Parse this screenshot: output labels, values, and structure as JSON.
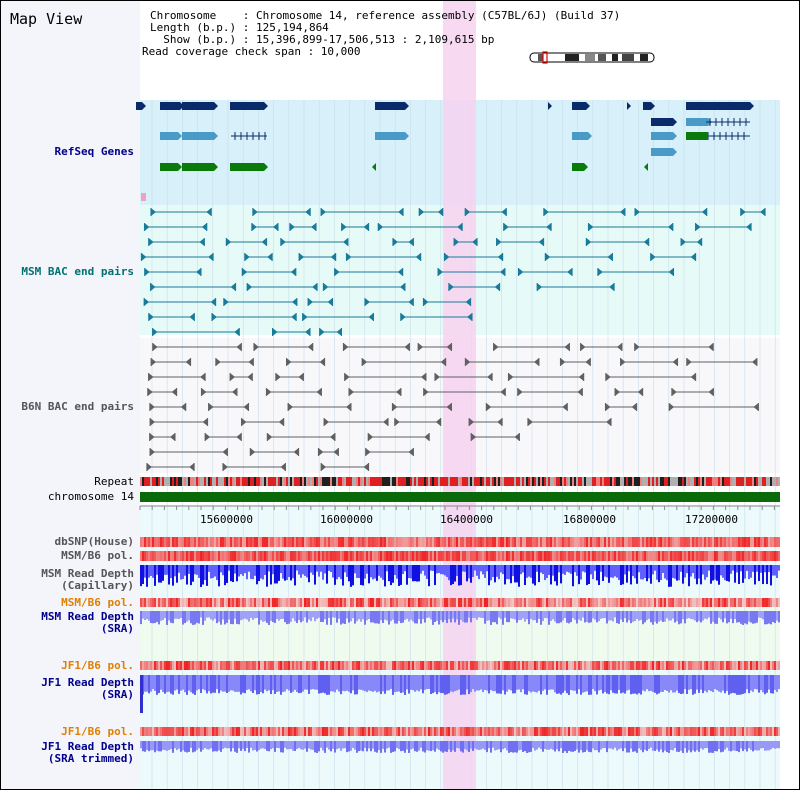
{
  "header": {
    "title": "Map View",
    "chromosome_line": "Chromosome    : Chromosome 14, reference assembly (C57BL/6J) (Build 37)",
    "length_line": "Length (b.p.) : 125,194,864",
    "show_line": "  Show (b.p.) : 15,396,899-17,506,513 : 2,109,615 bp",
    "coverage_line": "Read coverage check span : 10,000"
  },
  "tracks": {
    "refseq": "RefSeq Genes",
    "msm_bac": "MSM BAC end pairs",
    "b6n_bac": "B6N BAC end pairs",
    "repeat": "Repeat",
    "chromosome": "chromosome 14",
    "dbsnp": "dbSNP(House)",
    "msm_b6_pol_1": "MSM/B6 pol.",
    "msm_depth_cap_1": "MSM Read Depth",
    "msm_depth_cap_2": "(Capillary)",
    "msm_b6_pol_2": "MSM/B6 pol.",
    "msm_depth_sra_1": "MSM Read Depth",
    "msm_depth_sra_2": "(SRA)",
    "jf1_b6_pol_1": "JF1/B6 pol.",
    "jf1_depth_sra_1": "JF1 Read Depth",
    "jf1_depth_sra_2": "(SRA)",
    "jf1_b6_pol_2": "JF1/B6 pol.",
    "jf1_depth_trim_1": "JF1 Read Depth",
    "jf1_depth_trim_2": "(SRA trimmed)"
  },
  "ruler": {
    "ticks": [
      "15600000",
      "16000000",
      "16400000",
      "16800000",
      "17200000"
    ]
  },
  "colors": {
    "navy_gene": "#0a2a6a",
    "light_gene": "#4a9ac8",
    "green_gene": "#0a7a0a",
    "msm_bac": "#1a7a9a",
    "b6n_bac": "#606060",
    "label_blue": "#00008b",
    "label_orange": "#e08000",
    "label_teal": "#007070",
    "highlight": "#f6d2f0"
  }
}
